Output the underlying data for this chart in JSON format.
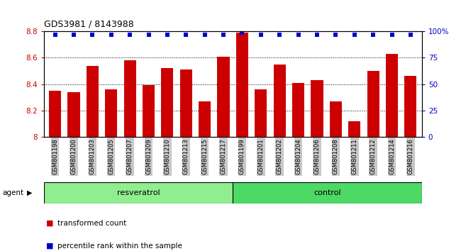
{
  "title": "GDS3981 / 8143988",
  "samples": [
    "GSM801198",
    "GSM801200",
    "GSM801203",
    "GSM801205",
    "GSM801207",
    "GSM801209",
    "GSM801210",
    "GSM801213",
    "GSM801215",
    "GSM801217",
    "GSM801199",
    "GSM801201",
    "GSM801202",
    "GSM801204",
    "GSM801206",
    "GSM801208",
    "GSM801211",
    "GSM801212",
    "GSM801214",
    "GSM801216"
  ],
  "bar_values": [
    8.35,
    8.34,
    8.54,
    8.36,
    8.58,
    8.39,
    8.52,
    8.51,
    8.27,
    8.61,
    8.79,
    8.36,
    8.55,
    8.41,
    8.43,
    8.27,
    8.12,
    8.5,
    8.63,
    8.46
  ],
  "percentile_values": [
    97,
    97,
    97,
    97,
    97,
    97,
    97,
    97,
    97,
    97,
    99,
    97,
    97,
    97,
    97,
    97,
    97,
    97,
    97,
    97
  ],
  "bar_color": "#cc0000",
  "percentile_color": "#0000cc",
  "ylim_left": [
    8.0,
    8.8
  ],
  "ylim_right": [
    0,
    100
  ],
  "yticks_left": [
    8.0,
    8.2,
    8.4,
    8.6,
    8.8
  ],
  "yticks_right": [
    0,
    25,
    50,
    75,
    100
  ],
  "ytick_labels_right": [
    "0",
    "25",
    "50",
    "75",
    "100%"
  ],
  "grid_values": [
    8.2,
    8.4,
    8.6
  ],
  "n_resveratrol": 10,
  "n_control": 10,
  "resveratrol_color": "#90EE90",
  "control_color": "#4CD964",
  "agent_label": "agent",
  "resveratrol_label": "resveratrol",
  "control_label": "control",
  "legend_bar_label": "transformed count",
  "legend_pct_label": "percentile rank within the sample",
  "bg_color": "#c8c8c8",
  "plot_bg_color": "#ffffff"
}
